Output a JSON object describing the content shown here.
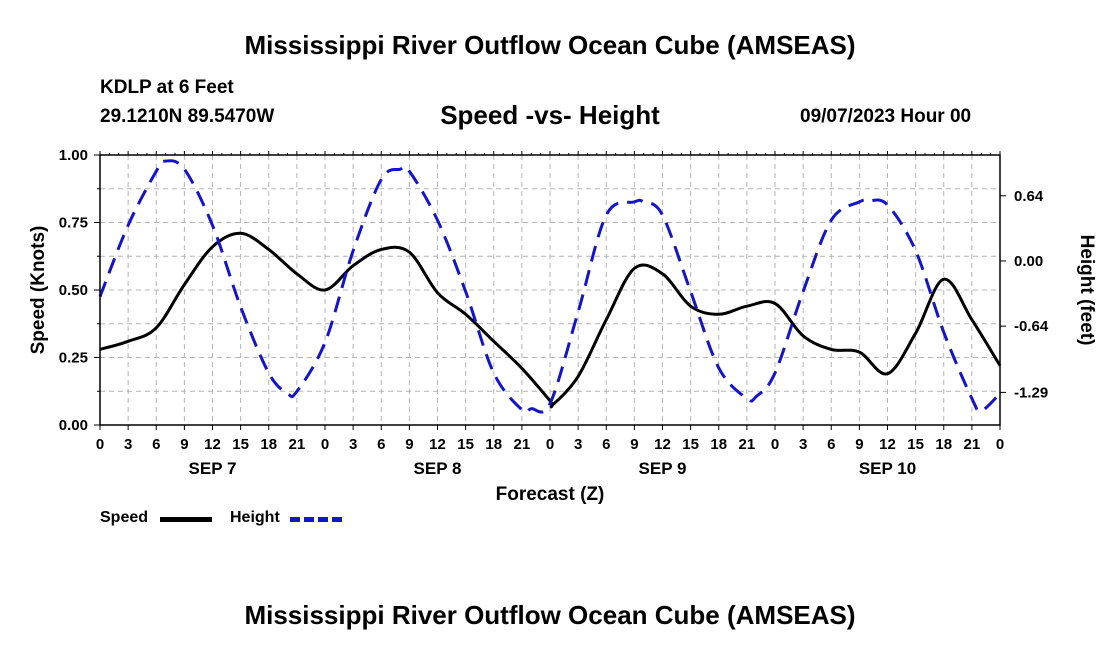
{
  "header": {
    "title": "Mississippi River Outflow Ocean Cube (AMSEAS)",
    "station": "KDLP at 6 Feet",
    "coordinates": "29.1210N  89.5470W",
    "datetime": "09/07/2023 Hour 00"
  },
  "footer": {
    "title": "Mississippi River Outflow Ocean Cube (AMSEAS)"
  },
  "legend": {
    "speed_label": "Speed",
    "height_label": "Height"
  },
  "colors": {
    "speed": "#000000",
    "height": "#1414c8",
    "grid": "#b4b4b4"
  },
  "chart_data": {
    "type": "line",
    "title": "Speed -vs- Height",
    "xlabel": "Forecast (Z)",
    "ylabel": "Speed (Knots)",
    "y2label": "Height (feet)",
    "x_range_hours": [
      0,
      96
    ],
    "ylim": [
      0,
      1
    ],
    "y2lim": [
      -1.61,
      1.04
    ],
    "y_ticks": [
      "0.00",
      "0.25",
      "0.50",
      "0.75",
      "1.00"
    ],
    "y_tick_values": [
      0,
      0.25,
      0.5,
      0.75,
      1.0
    ],
    "y2_ticks": [
      "-1.29",
      "-0.64",
      "0.00",
      "0.64"
    ],
    "y2_tick_values": [
      -1.29,
      -0.64,
      0.0,
      0.64
    ],
    "x_tick_labels": [
      "0",
      "3",
      "6",
      "9",
      "12",
      "15",
      "18",
      "21",
      "0",
      "3",
      "6",
      "9",
      "12",
      "15",
      "18",
      "21",
      "0",
      "3",
      "6",
      "9",
      "12",
      "15",
      "18",
      "21",
      "0",
      "3",
      "6",
      "9",
      "12",
      "15",
      "18",
      "21",
      "0"
    ],
    "day_labels": [
      "SEP 7",
      "SEP 8",
      "SEP 9",
      "SEP 10"
    ],
    "day_label_hours": [
      12,
      36,
      60,
      84
    ],
    "grid": true,
    "series": [
      {
        "name": "Speed",
        "axis": "left",
        "style": "solid",
        "x": [
          0,
          3,
          6,
          9,
          12,
          15,
          18,
          21,
          24,
          27,
          30,
          33,
          36,
          39,
          42,
          45,
          48,
          48.3,
          51,
          54,
          57,
          60,
          63,
          66,
          69,
          72,
          75,
          78,
          81,
          84,
          87,
          90,
          93,
          96
        ],
        "values": [
          0.28,
          0.31,
          0.36,
          0.52,
          0.66,
          0.71,
          0.65,
          0.56,
          0.5,
          0.59,
          0.65,
          0.64,
          0.49,
          0.41,
          0.31,
          0.21,
          0.09,
          0.075,
          0.18,
          0.39,
          0.58,
          0.56,
          0.44,
          0.41,
          0.44,
          0.45,
          0.33,
          0.28,
          0.27,
          0.19,
          0.34,
          0.54,
          0.39,
          0.22
        ]
      },
      {
        "name": "Height",
        "axis": "right",
        "style": "dashed",
        "x": [
          0,
          3,
          6,
          7,
          9,
          12,
          15,
          18,
          20,
          21,
          24,
          27,
          30,
          32,
          33,
          36,
          39,
          42,
          45,
          46,
          48,
          51,
          54,
          57,
          58,
          60,
          63,
          66,
          69,
          70,
          72,
          75,
          78,
          81,
          82,
          84,
          87,
          90,
          93,
          94,
          96
        ],
        "values": [
          -0.35,
          0.35,
          0.88,
          0.98,
          0.9,
          0.35,
          -0.45,
          -1.1,
          -1.3,
          -1.28,
          -0.8,
          0.1,
          0.8,
          0.9,
          0.88,
          0.4,
          -0.3,
          -1.1,
          -1.46,
          -1.45,
          -1.4,
          -0.5,
          0.45,
          0.58,
          0.58,
          0.45,
          -0.3,
          -1.05,
          -1.35,
          -1.33,
          -1.1,
          -0.3,
          0.4,
          0.58,
          0.59,
          0.55,
          0.1,
          -0.7,
          -1.35,
          -1.47,
          -1.3
        ]
      }
    ]
  }
}
